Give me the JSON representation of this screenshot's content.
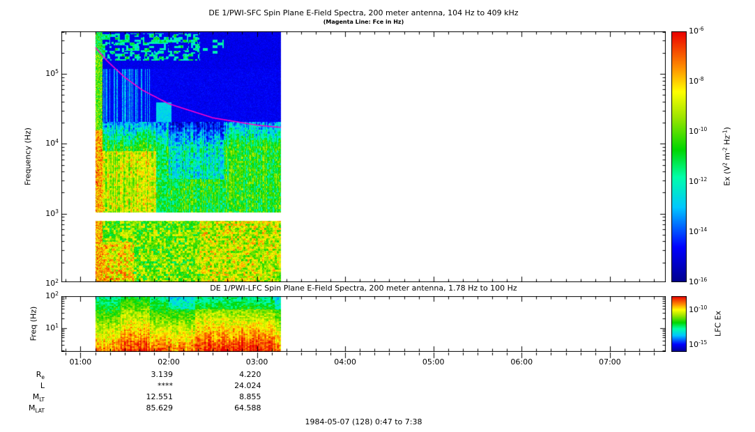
{
  "top_panel": {
    "title": "DE 1/PWI-SFC  Spin Plane E-Field Spectra, 200 meter antenna, 104 Hz to 409 kHz",
    "subtitle": "(Magenta Line: Fce in Hz)",
    "ylabel": "Frequency (Hz)",
    "ytick_labels": [
      "10^5",
      "10^4",
      "10^3",
      "10^2"
    ],
    "colorbar": {
      "label": "Ex (V^2 m^-2 Hz^-1)",
      "tick_labels": [
        "10^-6",
        "10^-8",
        "10^-10",
        "10^-12",
        "10^-14",
        "10^-16"
      ]
    }
  },
  "bottom_panel": {
    "title": "DE 1/PWI-LFC  Spin Plane E-Field Spectra, 200 meter antenna, 1.78 Hz to 100 Hz",
    "ylabel": "Freq (Hz)",
    "ytick_labels": [
      "10^2",
      "10^1"
    ],
    "colorbar": {
      "label": "LFC Ex",
      "tick_labels": [
        "10^-10",
        "10^-15"
      ]
    }
  },
  "time_axis": {
    "tick_labels": [
      "01:00",
      "02:00",
      "03:00",
      "04:00",
      "05:00",
      "06:00",
      "07:00"
    ]
  },
  "ephemeris": {
    "rows": [
      {
        "label": "R_e",
        "values": [
          "3.139",
          "4.220"
        ]
      },
      {
        "label": "L",
        "values": [
          "****",
          "24.024"
        ]
      },
      {
        "label": "M_LT",
        "values": [
          "12.551",
          "8.855"
        ]
      },
      {
        "label": "M_LAT",
        "values": [
          "85.629",
          "64.588"
        ]
      }
    ],
    "value_hours": [
      2,
      3
    ]
  },
  "footer": "1984-05-07 (128) 0:47 to 7:38",
  "chart_data": [
    {
      "type": "heatmap",
      "panel": "SFC",
      "title": "DE 1/PWI-SFC Spin Plane E-Field Spectra, 200 meter antenna, 104 Hz to 409 kHz",
      "ylabel": "Frequency (Hz)",
      "y_scale": "log",
      "y_range_hz": [
        104,
        409000
      ],
      "x_range_hours": [
        0.7833,
        7.6333
      ],
      "x_tick_labels": [
        "01:00",
        "02:00",
        "03:00",
        "04:00",
        "05:00",
        "06:00",
        "07:00"
      ],
      "data_extent_hours": [
        1.17,
        3.27
      ],
      "data_gap_band_hz": [
        800,
        1040
      ],
      "colorbar": {
        "label": "Ex (V^2 m^-2 Hz^-1)",
        "scale": "log",
        "range": [
          1e-16,
          1e-06
        ],
        "colormap": "rainbow"
      },
      "fce_line": {
        "name": "Fce",
        "color": "#ff00cc",
        "points_hours_hz": [
          [
            1.17,
            240000
          ],
          [
            1.3,
            155000
          ],
          [
            1.5,
            90000
          ],
          [
            1.7,
            59000
          ],
          [
            2.0,
            37500
          ],
          [
            2.5,
            23600
          ],
          [
            3.0,
            18500
          ],
          [
            3.27,
            17200
          ]
        ]
      },
      "features": [
        "intense broadband burst at ~01:10 spanning 104 Hz to 409 kHz",
        "patchy cyan/green AKR emission 170-390 kHz from 01:15 to 02:20",
        "dark blue low-intensity background 20-120 kHz",
        "green VLF hiss band ~1-20 kHz, brightest 01:20-01:50",
        "white data-gap band near 1 kHz",
        "green-yellow speckled band 104-800 Hz intensifying after 02:20",
        "no data after ~03:16 (white)"
      ]
    },
    {
      "type": "heatmap",
      "panel": "LFC",
      "title": "DE 1/PWI-LFC Spin Plane E-Field Spectra, 200 meter antenna, 1.78 Hz to 100 Hz",
      "ylabel": "Freq (Hz)",
      "y_scale": "log",
      "y_range_hz": [
        1.78,
        100
      ],
      "x_range_hours": [
        0.7833,
        7.6333
      ],
      "data_extent_hours": [
        1.17,
        3.27
      ],
      "colorbar": {
        "label": "LFC Ex",
        "scale": "log",
        "range": [
          1e-16,
          1e-08
        ],
        "colormap": "rainbow"
      },
      "features": [
        "orange/red intensity below ~30 Hz with dark-red vertical bands near 01:30-01:45 and 02:20-03:10",
        "green/yellow levels near 30-100 Hz",
        "no data after ~03:16 (white)"
      ]
    }
  ]
}
